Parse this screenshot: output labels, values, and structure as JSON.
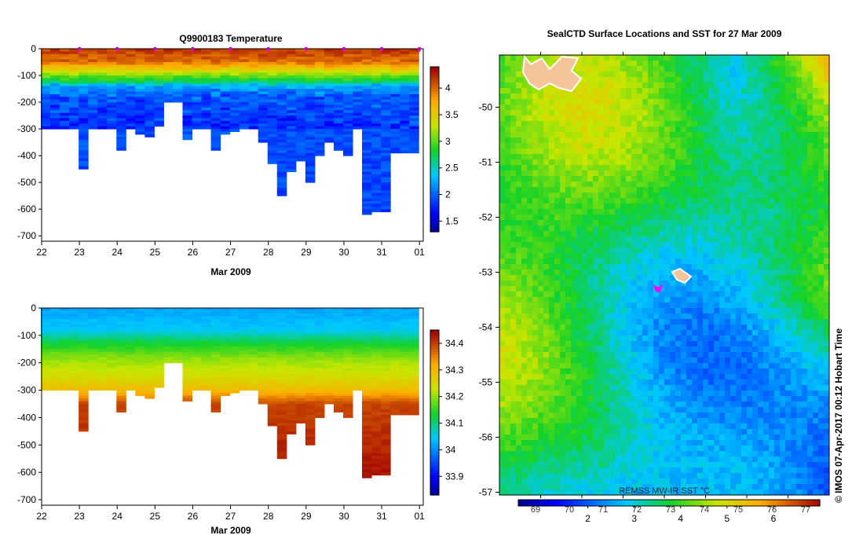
{
  "chart_data": [
    {
      "type": "heatmap",
      "id": "temperature",
      "title": "Q9900183  Temperature",
      "xlabel": "Mar 2009",
      "ylabel": "",
      "x_ticks": [
        "22",
        "23",
        "24",
        "25",
        "26",
        "27",
        "28",
        "29",
        "30",
        "31",
        "01"
      ],
      "y_ticks": [
        "0",
        "-100",
        "-200",
        "-300",
        "-400",
        "-500",
        "-600",
        "-700"
      ],
      "xlim": [
        22,
        32.1
      ],
      "ylim": [
        -720,
        0
      ],
      "colorbar_ticks": [
        "1.5",
        "2",
        "2.5",
        "3",
        "3.5",
        "4"
      ],
      "colorbar_range": [
        1.3,
        4.4
      ],
      "profile_times": [
        22.1,
        22.35,
        22.6,
        22.85,
        23.1,
        23.35,
        23.6,
        23.85,
        24.1,
        24.35,
        24.6,
        24.85,
        25.1,
        25.35,
        25.6,
        25.85,
        26.1,
        26.35,
        26.6,
        26.85,
        27.1,
        27.35,
        27.6,
        27.85,
        28.1,
        28.35,
        28.6,
        28.85,
        29.1,
        29.35,
        29.6,
        29.85,
        30.1,
        30.35,
        30.6,
        30.85,
        31.1,
        31.35,
        31.6,
        31.85
      ],
      "profile_max_depth": [
        300,
        300,
        300,
        300,
        450,
        300,
        300,
        300,
        380,
        300,
        320,
        330,
        290,
        200,
        200,
        340,
        300,
        300,
        380,
        320,
        310,
        300,
        300,
        350,
        430,
        550,
        460,
        420,
        500,
        400,
        350,
        380,
        400,
        300,
        620,
        610,
        610,
        390,
        390,
        390
      ],
      "surface_markers": [
        23,
        24,
        25,
        26,
        27,
        28,
        29,
        30,
        31,
        32
      ],
      "value_profile": [
        [
          0,
          4.2
        ],
        [
          50,
          4.0
        ],
        [
          80,
          3.5
        ],
        [
          100,
          3.1
        ],
        [
          120,
          2.8
        ],
        [
          140,
          2.4
        ],
        [
          180,
          2.1
        ],
        [
          250,
          2.0
        ],
        [
          300,
          1.95
        ],
        [
          700,
          1.9
        ]
      ]
    },
    {
      "type": "heatmap",
      "id": "salinity",
      "title": "",
      "xlabel": "Mar 2009",
      "ylabel": "",
      "x_ticks": [
        "22",
        "23",
        "24",
        "25",
        "26",
        "27",
        "28",
        "29",
        "30",
        "31",
        "01"
      ],
      "y_ticks": [
        "0",
        "-100",
        "-200",
        "-300",
        "-400",
        "-500",
        "-600",
        "-700"
      ],
      "xlim": [
        22,
        32.1
      ],
      "ylim": [
        -720,
        0
      ],
      "colorbar_ticks": [
        "33.9",
        "34",
        "34.1",
        "34.2",
        "34.3",
        "34.4"
      ],
      "colorbar_range": [
        33.83,
        34.45
      ],
      "value_profile": [
        [
          0,
          34.02
        ],
        [
          80,
          34.05
        ],
        [
          120,
          34.12
        ],
        [
          180,
          34.2
        ],
        [
          250,
          34.25
        ],
        [
          300,
          34.3
        ],
        [
          350,
          34.4
        ],
        [
          700,
          34.45
        ]
      ]
    },
    {
      "type": "heatmap",
      "id": "sst_map",
      "title": "SealCTD Surface Locations and SST for 27 Mar 2009",
      "y_ticks": [
        "-50",
        "-51",
        "-52",
        "-53",
        "-54",
        "-55",
        "-56",
        "-57"
      ],
      "ylim": [
        -57.05,
        -49.05
      ],
      "colorbar_top_ticks": [
        "69",
        "70",
        "71",
        "72",
        "73",
        "74",
        "75",
        "76",
        "77"
      ],
      "colorbar_bottom_ticks": [
        "2",
        "3",
        "4",
        "5",
        "6"
      ],
      "colorbar_label": "REMSS MW-IR SST °C",
      "colorbar_range": [
        0.5,
        7.0
      ],
      "seal_location": {
        "lat": -53.3,
        "label": "seal"
      },
      "credit": "© IMOS 07-Apr-2017 00:12 Hobart Time"
    }
  ]
}
